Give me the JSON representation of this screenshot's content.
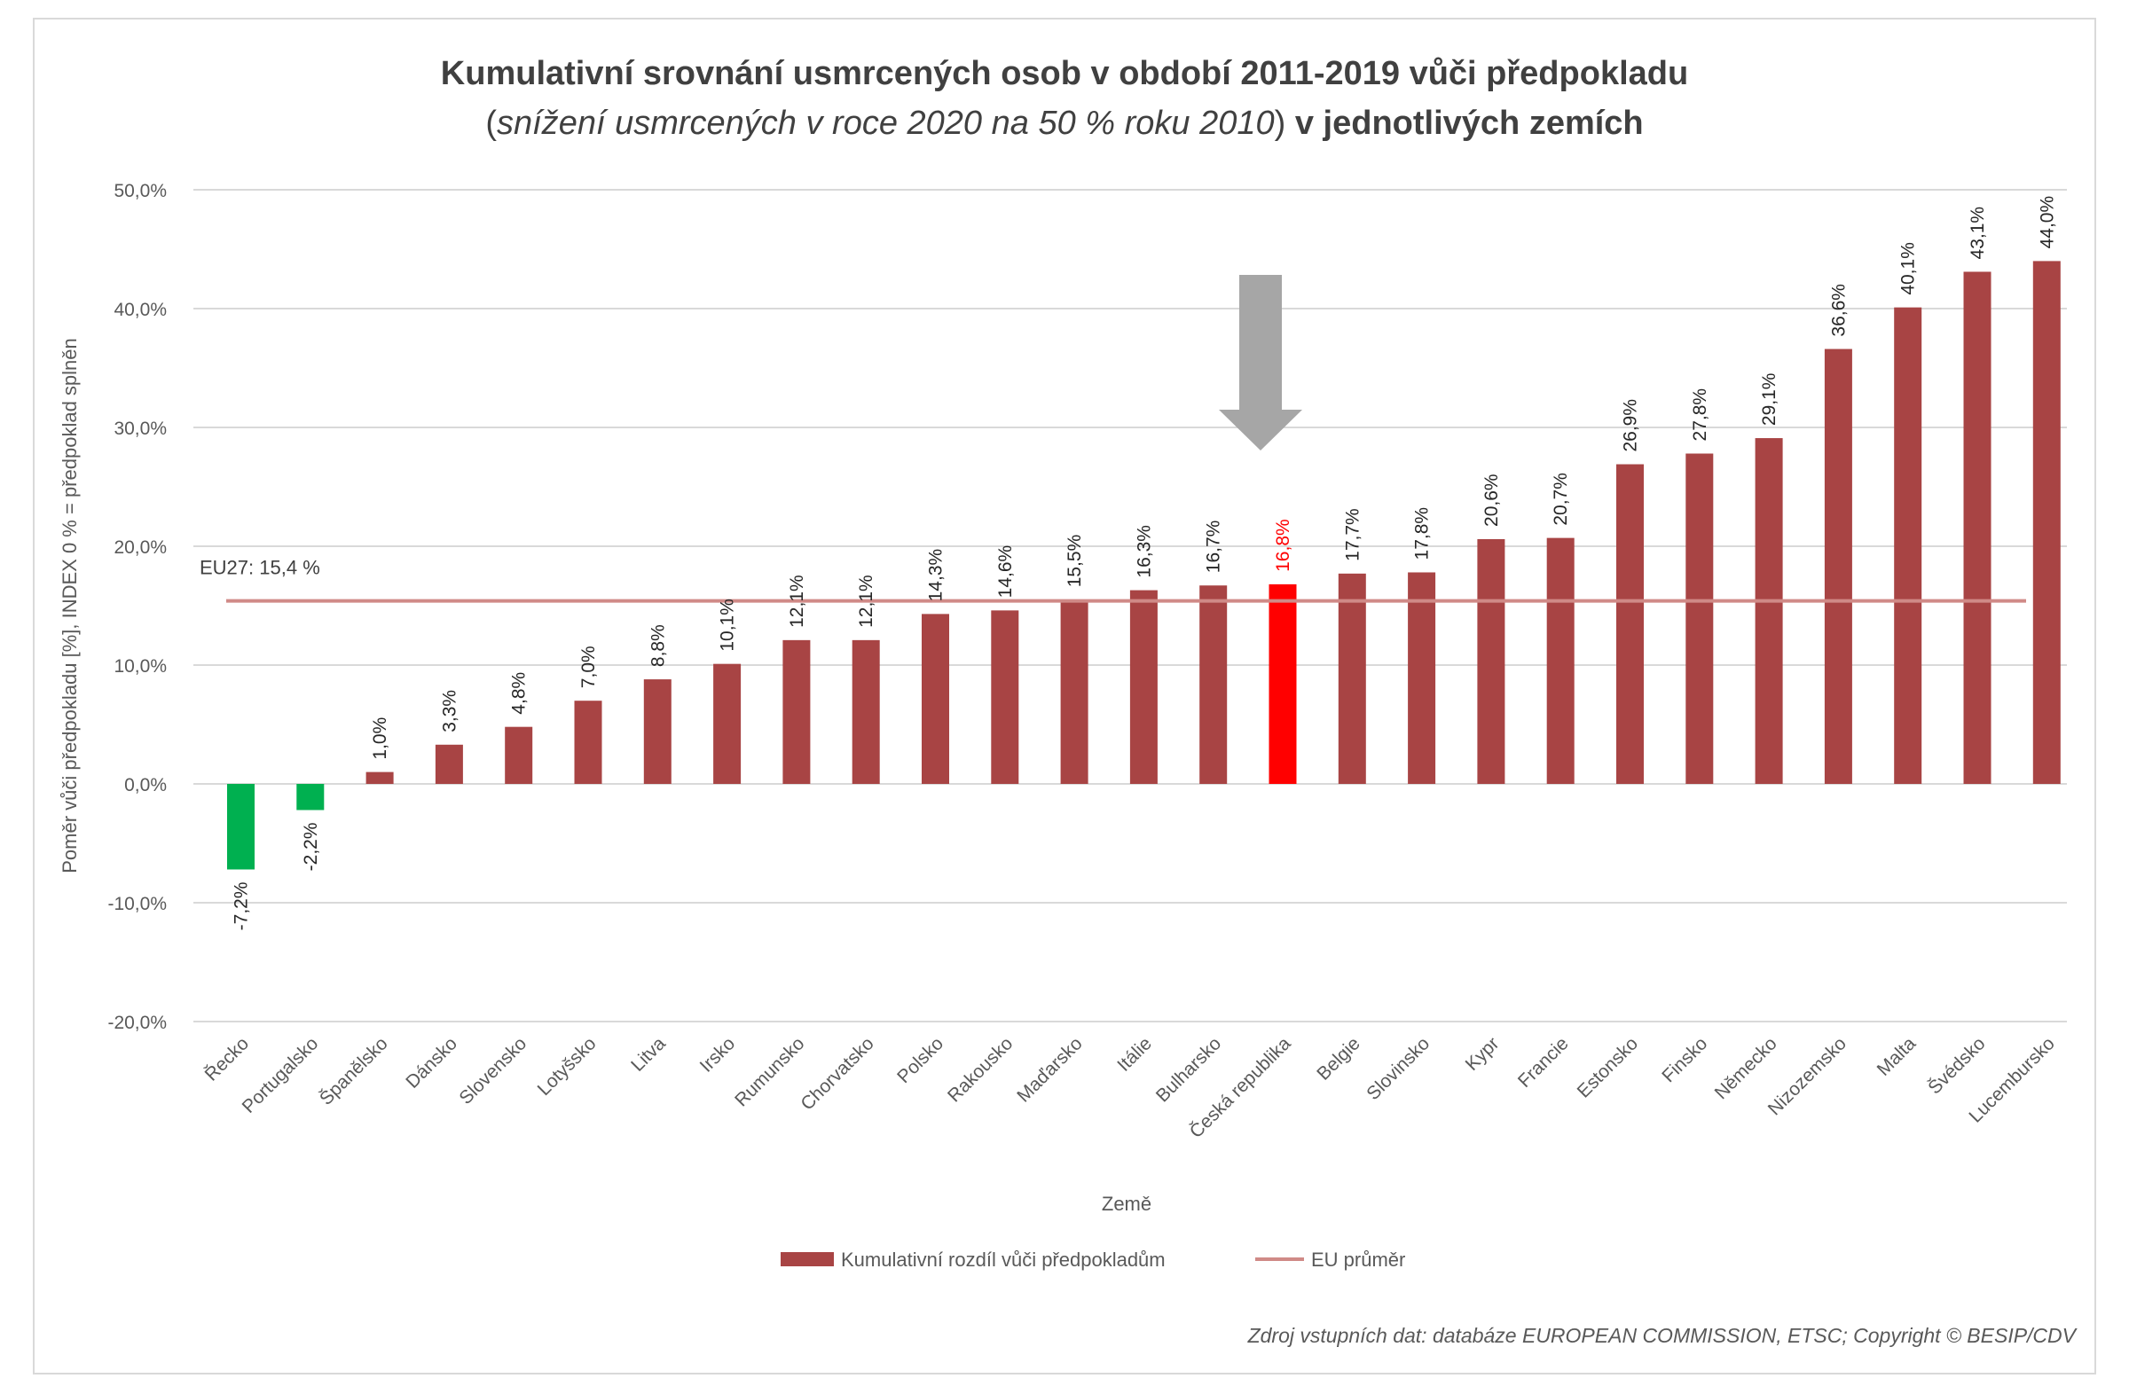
{
  "title": {
    "line1": "Kumulativní srovnání usmrcených osob v období 2011-2019 vůči předpokladu",
    "line2_open": "(",
    "line2_italic": "snížení usmrcených v roce 2020 na 50 % roku 2010",
    "line2_close": ")",
    "line2_bold": " v jednotlivých zemích"
  },
  "source": "Zdroj vstupních dat: databáze EUROPEAN COMMISSION, ETSC; Copyright © BESIP/CDV",
  "chart_data": {
    "type": "bar",
    "xlabel": "Země",
    "ylabel": "Poměr vůči předpokladu [%],  INDEX 0 %  = předpoklad splněn",
    "ylim": [
      -20,
      50
    ],
    "yticks": [
      "50,0%",
      "40,0%",
      "30,0%",
      "20,0%",
      "10,0%",
      "0,0%",
      "-10,0%",
      "-20,0%"
    ],
    "ytick_values": [
      50,
      40,
      30,
      20,
      10,
      0,
      -10,
      -20
    ],
    "grid": true,
    "legend_position": "bottom",
    "categories": [
      "Řecko",
      "Portugalsko",
      "Španělsko",
      "Dánsko",
      "Slovensko",
      "Lotyšsko",
      "Litva",
      "Irsko",
      "Rumunsko",
      "Chorvatsko",
      "Polsko",
      "Rakousko",
      "Maďarsko",
      "Itálie",
      "Bulharsko",
      "Česká republika",
      "Belgie",
      "Slovinsko",
      "Kypr",
      "Francie",
      "Estonsko",
      "Finsko",
      "Německo",
      "Nizozemsko",
      "Malta",
      "Švédsko",
      "Lucembursko"
    ],
    "values": [
      -7.2,
      -2.2,
      1.0,
      3.3,
      4.8,
      7.0,
      8.8,
      10.1,
      12.1,
      12.1,
      14.3,
      14.6,
      15.5,
      16.3,
      16.7,
      16.8,
      17.7,
      17.8,
      20.6,
      20.7,
      26.9,
      27.8,
      29.1,
      36.6,
      40.1,
      43.1,
      44.0
    ],
    "labels": [
      "-7,2%",
      "-2,2%",
      "1,0%",
      "3,3%",
      "4,8%",
      "7,0%",
      "8,8%",
      "10,1%",
      "12,1%",
      "12,1%",
      "14,3%",
      "14,6%",
      "15,5%",
      "16,3%",
      "16,7%",
      "16,8%",
      "17,7%",
      "17,8%",
      "20,6%",
      "20,7%",
      "26,9%",
      "27,8%",
      "29,1%",
      "36,6%",
      "40,1%",
      "43,1%",
      "44,0%"
    ],
    "highlight_index": 15,
    "series": [
      {
        "name": "Kumulativní rozdíl vůči předpokladům"
      },
      {
        "name": "EU průměr",
        "value": 15.4
      }
    ],
    "eu_label": "EU27: 15,4 %",
    "colors": {
      "bar": "#a84444",
      "negative": "#00b050",
      "highlight": "#ff0000",
      "highlight_label": "#ff0000",
      "eu_line": "#d08a87",
      "arrow": "#a6a6a6",
      "grid": "#d9d9d9",
      "text": "#404040",
      "tick": "#595959"
    }
  }
}
